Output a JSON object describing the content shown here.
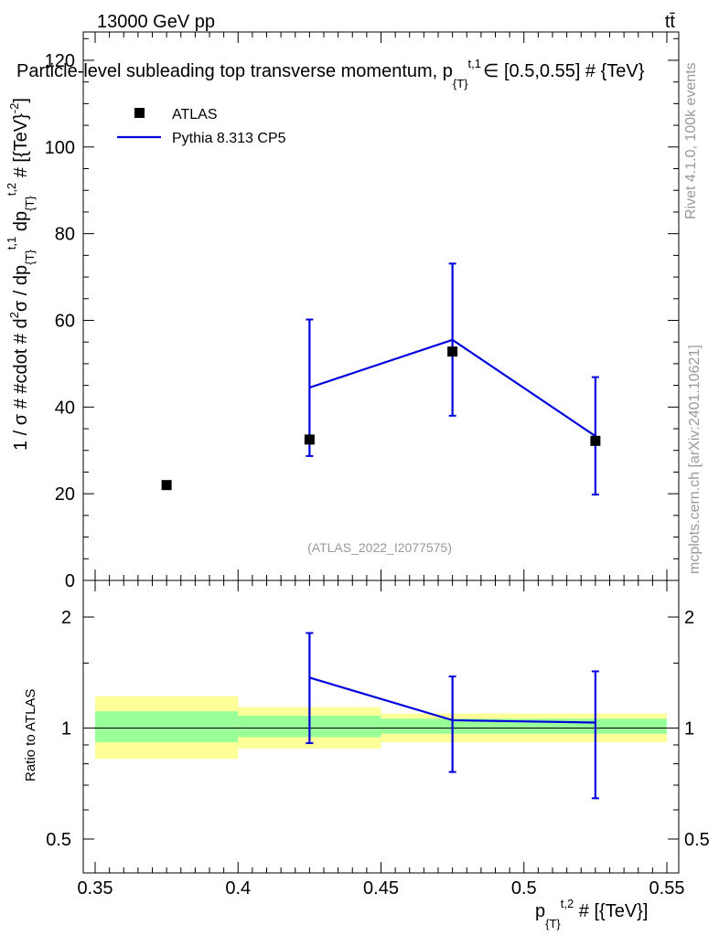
{
  "header": {
    "energy_label": "13000 GeV pp",
    "process_label": "tt̄",
    "title": "Particle-level subleading top transverse momentum, p",
    "title_sub": "{T}",
    "title_sup": "t,1",
    "title_rest": "∈ [0.5,0.55] # {TeV}"
  },
  "side_labels": {
    "rivet": "Rivet 4.1.0,  100k events",
    "mcplots": "mcplots.cern.ch [arXiv:2401.10621]"
  },
  "watermark": "(ATLAS_2022_I2077575)",
  "legend": {
    "data_label": "ATLAS",
    "mc_label": "Pythia 8.313 CP5"
  },
  "colors": {
    "data": "#000000",
    "mc": "#0000dd",
    "band_inner": "#99ff99",
    "band_outer": "#ffff99"
  },
  "chart_data": [
    {
      "type": "scatter",
      "panel": "main",
      "ylabel": "1 / σ # #cdot # d²σ / dp_{T}^{t,1} dp_{T}^{t,2} # [{TeV}^{-2}]",
      "ylabel_parts": {
        "a": "1 / σ # #cdot # d",
        "a_sup": "2",
        "b": "σ / dp",
        "b_sub": "{T}",
        "b_sup": "t,1",
        "c": " dp",
        "c_sub": "{T}",
        "c_sup": "t,2",
        "d": " # [{TeV}",
        "d_sup": "-2",
        "e": "]"
      },
      "ylim": [
        0,
        126
      ],
      "yticks": [
        0,
        20,
        40,
        60,
        80,
        100,
        120
      ],
      "series": [
        {
          "name": "ATLAS",
          "x": [
            0.375,
            0.425,
            0.475,
            0.525
          ],
          "y": [
            22.0,
            32.5,
            52.8,
            32.2
          ]
        },
        {
          "name": "Pythia 8.313 CP5",
          "x": [
            0.425,
            0.475,
            0.525
          ],
          "y": [
            44.5,
            55.5,
            33.3
          ],
          "yerr_low": [
            15.8,
            17.5,
            13.5
          ],
          "yerr_high": [
            15.7,
            17.6,
            13.6
          ]
        }
      ]
    },
    {
      "type": "line",
      "panel": "ratio",
      "ylabel": "Ratio to ATLAS",
      "xlabel": "p_{T}^{t,2} # [{TeV}]",
      "xlabel_parts": {
        "a": "p",
        "a_sub": "{T}",
        "a_sup": "t,2",
        "b": " # [{TeV}]"
      },
      "xlim": [
        0.35,
        0.55
      ],
      "xticks": [
        "0.35",
        "0.4",
        "0.45",
        "0.5",
        "0.55"
      ],
      "ylim_log": [
        0.4,
        2.3
      ],
      "yticks": [
        "0.5",
        "1",
        "2"
      ],
      "bands": [
        {
          "x0": 0.35,
          "x1": 0.4,
          "inner": [
            0.915,
            1.11
          ],
          "outer": [
            0.825,
            1.22
          ]
        },
        {
          "x0": 0.4,
          "x1": 0.45,
          "inner": [
            0.945,
            1.08
          ],
          "outer": [
            0.88,
            1.14
          ]
        },
        {
          "x0": 0.45,
          "x1": 0.55,
          "inner": [
            0.965,
            1.06
          ],
          "outer": [
            0.915,
            1.095
          ]
        }
      ],
      "series": [
        {
          "name": "Pythia 8.313 CP5",
          "x": [
            0.425,
            0.475,
            0.525
          ],
          "y": [
            1.37,
            1.05,
            1.035
          ],
          "yerr_low": [
            0.46,
            0.29,
            0.39
          ],
          "yerr_high": [
            0.44,
            0.33,
            0.39
          ]
        }
      ]
    }
  ]
}
